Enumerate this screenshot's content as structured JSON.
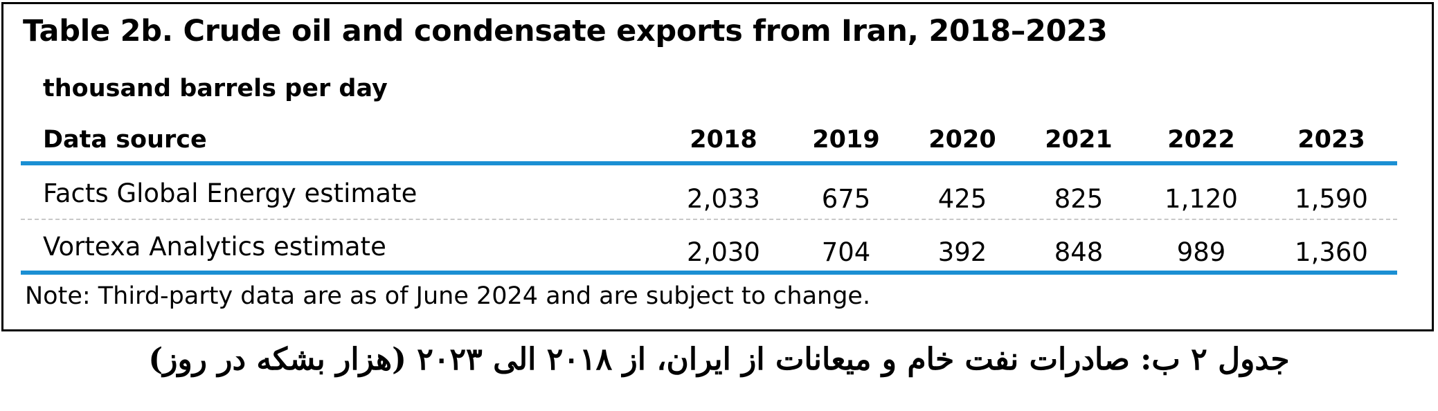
{
  "table": {
    "title": "Table 2b. Crude oil and condensate exports from Iran, 2018–2023",
    "units": "thousand barrels per day",
    "header_label": "Data source",
    "years": [
      "2018",
      "2019",
      "2020",
      "2021",
      "2022",
      "2023"
    ],
    "rows": [
      {
        "source": "Facts Global Energy estimate",
        "values": [
          "2,033",
          "675",
          "425",
          "825",
          "1,120",
          "1,590"
        ]
      },
      {
        "source": "Vortexa Analytics estimate",
        "values": [
          "2,030",
          "704",
          "392",
          "848",
          "989",
          "1,360"
        ]
      }
    ],
    "note": "Note: Third-party data are as of June 2024 and are subject to change.",
    "rule_color": "#1b8fd3"
  },
  "caption": "جدول ۲ ب: صادرات نفت خام و میعانات از ایران، از ۲۰۱۸ الی ۲۰۲۳ (هزار بشکه در روز)"
}
